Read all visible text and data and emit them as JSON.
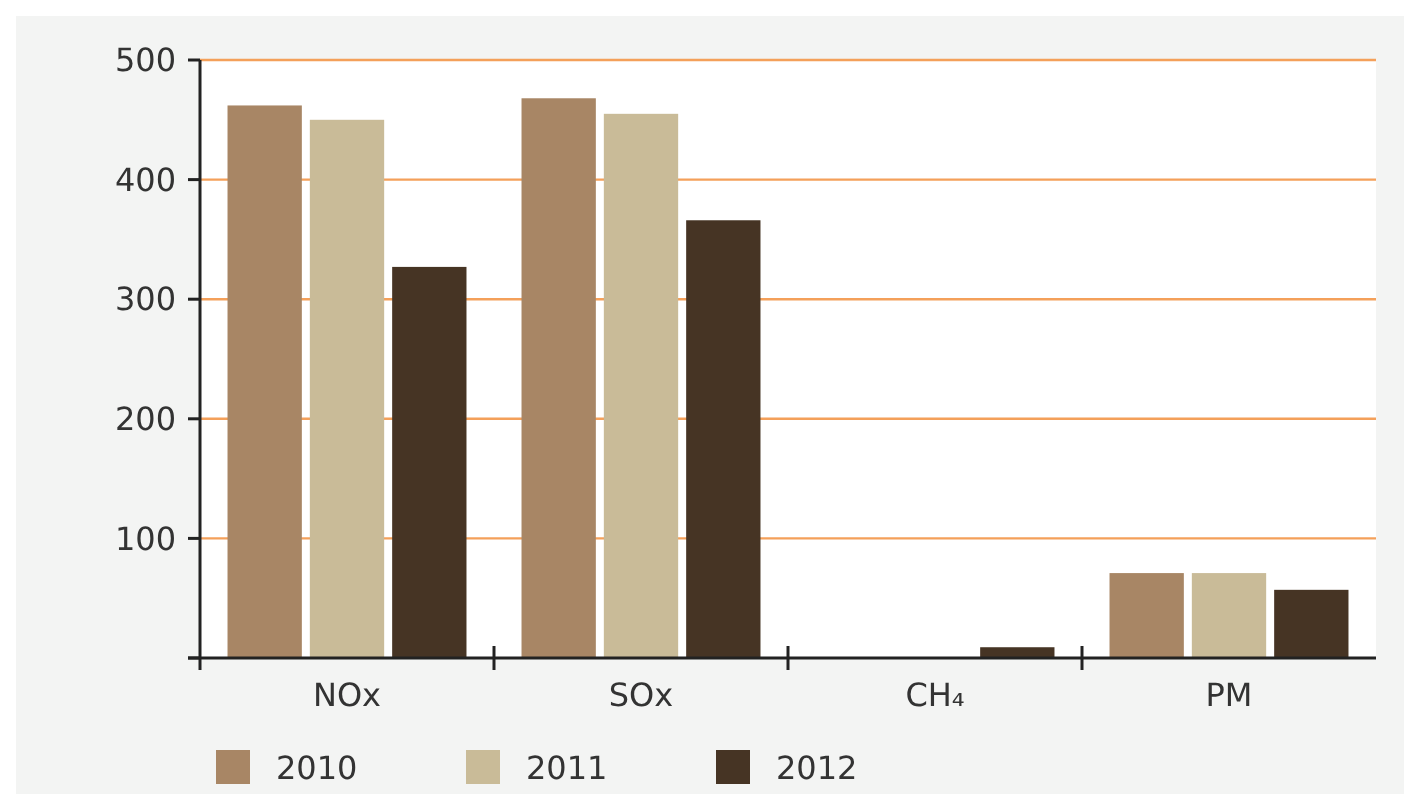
{
  "chart_data": {
    "type": "bar",
    "categories": [
      "NOx",
      "SOx",
      "CH₄",
      "PM"
    ],
    "series": [
      {
        "name": "2010",
        "color": "#a88665",
        "values": [
          462,
          468,
          0,
          71
        ]
      },
      {
        "name": "2011",
        "color": "#c9bb98",
        "values": [
          450,
          455,
          0,
          71
        ]
      },
      {
        "name": "2012",
        "color": "#463424",
        "values": [
          327,
          366,
          9,
          57
        ]
      }
    ],
    "ylim": [
      0,
      500
    ],
    "yticks": [
      {
        "value": 0,
        "label": null
      },
      100,
      200,
      300,
      400,
      500
    ],
    "grid": "y",
    "legend": "bottom"
  }
}
